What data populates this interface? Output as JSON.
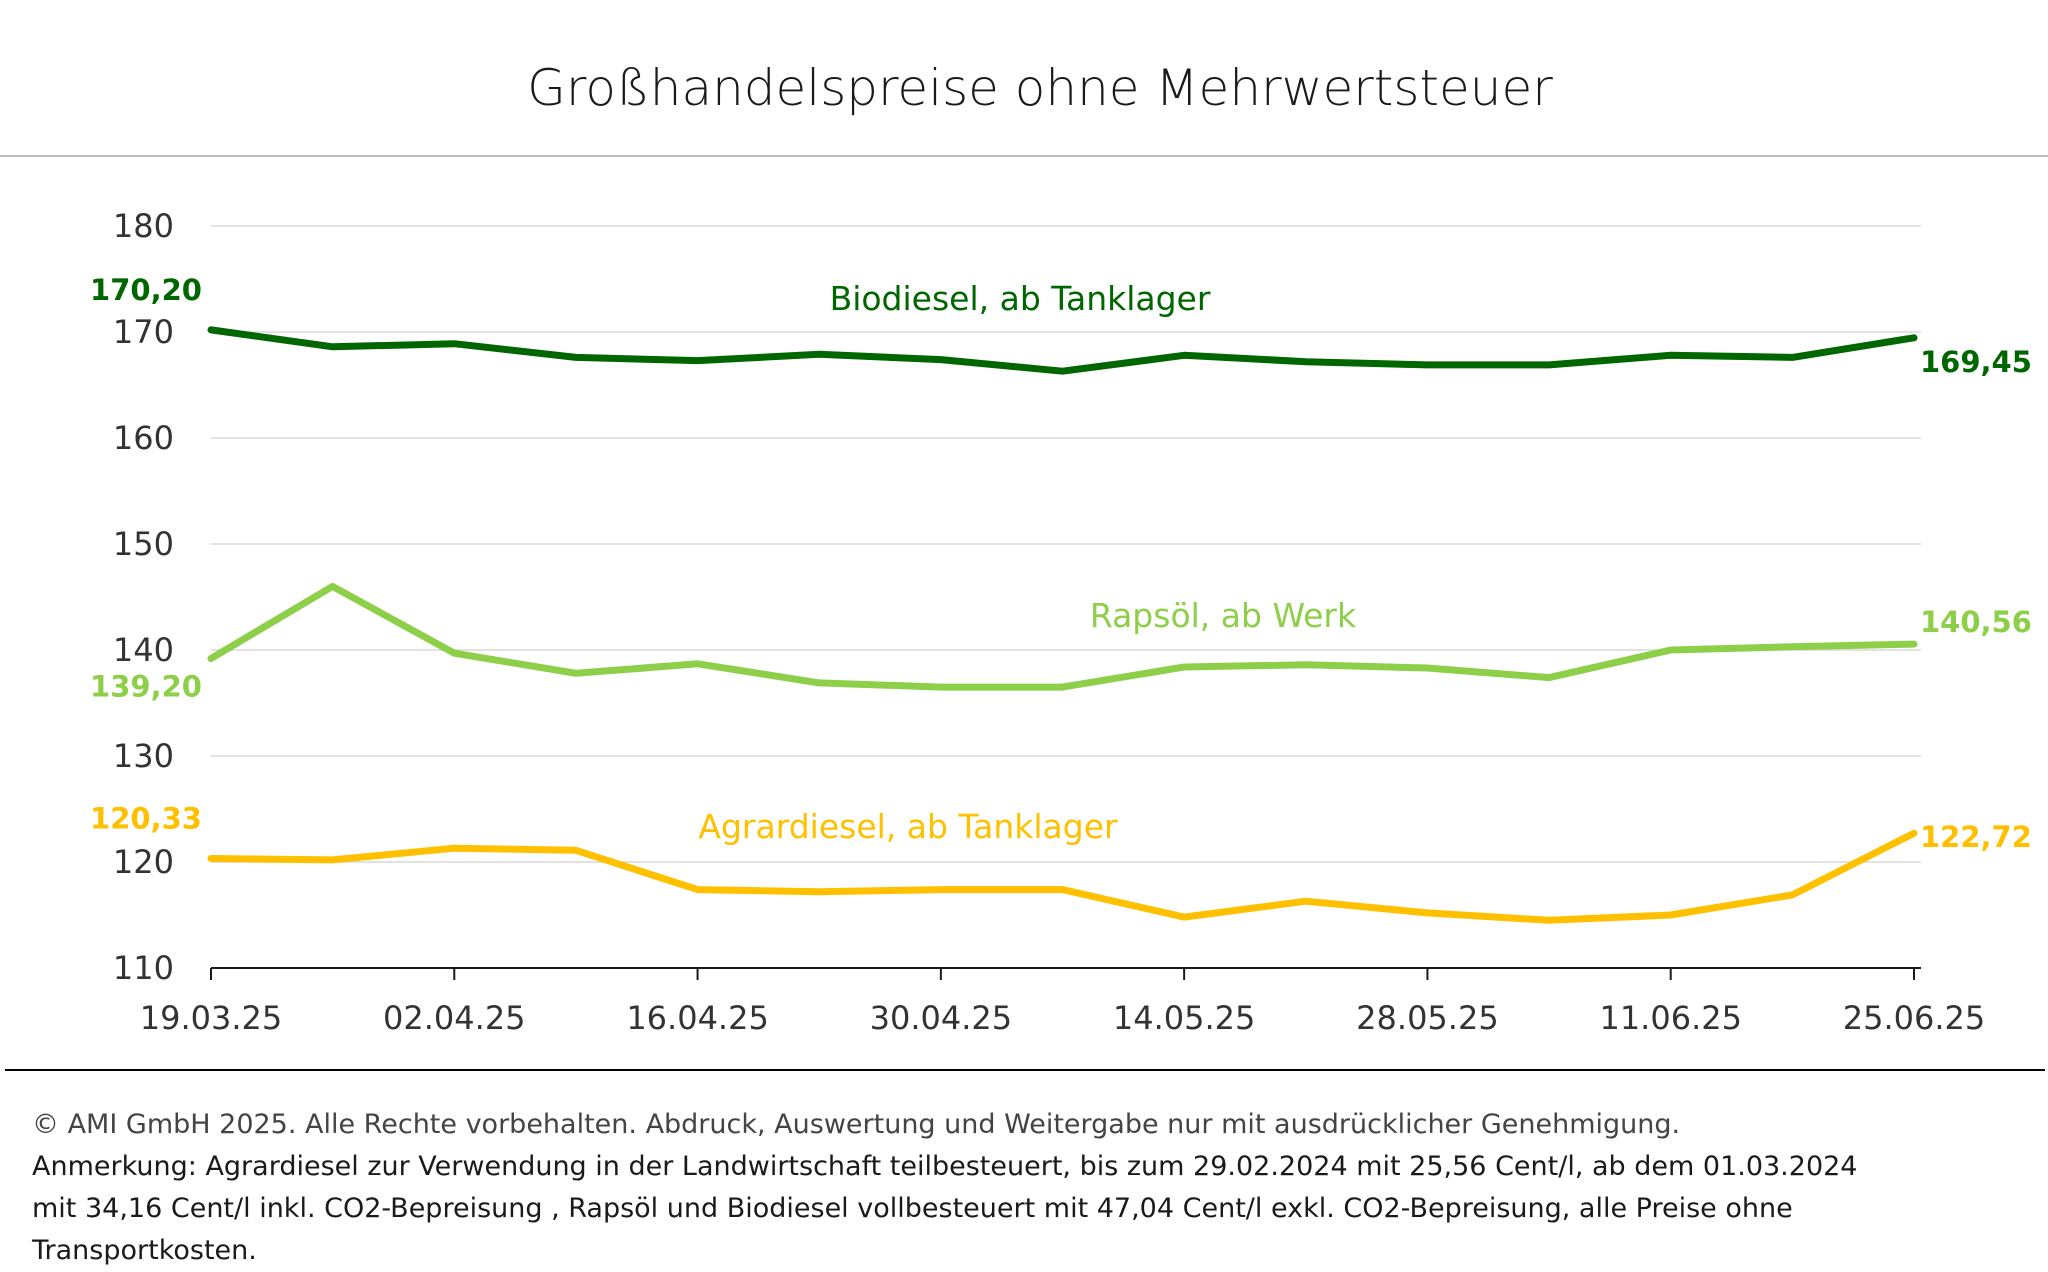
{
  "footer": {
    "copyright": "© AMI GmbH 2025.  Alle Rechte vorbehalten.  Abdruck, Auswertung und Weitergabe nur mit ausdrücklicher Genehmigung.",
    "note_line1": "Anmerkung: Agrardiesel zur Verwendung in der Landwirtschaft teilbesteuert, bis zum 29.02.2024 mit 25,56 Cent/l, ab dem 01.03.2024",
    "note_line2": "mit 34,16 Cent/l inkl. CO2-Bepreisung , Rapsöl und Biodiesel vollbesteuert mit 47,04 Cent/l exkl. CO2-Bepreisung, alle Preise ohne Transportkosten."
  },
  "chart_data": {
    "type": "line",
    "title": "Großhandelspreise ohne Mehrwertsteuer",
    "xlabel": "",
    "ylabel": "",
    "ylim": [
      110,
      180
    ],
    "yticks": [
      110,
      120,
      130,
      140,
      150,
      160,
      170,
      180
    ],
    "grid": true,
    "x": [
      "19.03.25",
      "26.03.25",
      "02.04.25",
      "09.04.25",
      "16.04.25",
      "23.04.25",
      "30.04.25",
      "07.05.25",
      "14.05.25",
      "21.05.25",
      "28.05.25",
      "04.06.25",
      "11.06.25",
      "18.06.25",
      "25.06.25"
    ],
    "xtick_labels": [
      "19.03.25",
      "02.04.25",
      "16.04.25",
      "30.04.25",
      "14.05.25",
      "28.05.25",
      "11.06.25",
      "25.06.25"
    ],
    "series": [
      {
        "name": "Biodiesel, ab Tanklager",
        "color": "#006600",
        "values": [
          170.2,
          168.6,
          168.9,
          167.6,
          167.3,
          167.9,
          167.4,
          166.3,
          167.8,
          167.2,
          166.9,
          166.9,
          167.8,
          167.6,
          169.45
        ],
        "first_label": "170,20",
        "last_label": "169,45"
      },
      {
        "name": "Rapsöl, ab Werk",
        "color": "#8ecf4a",
        "values": [
          139.2,
          146.0,
          139.7,
          137.8,
          138.7,
          136.9,
          136.5,
          136.5,
          138.4,
          138.6,
          138.3,
          137.4,
          140.0,
          140.3,
          140.56
        ],
        "first_label": "139,20",
        "last_label": "140,56"
      },
      {
        "name": "Agrardiesel, ab Tanklager",
        "color": "#ffc000",
        "values": [
          120.33,
          120.2,
          121.3,
          121.1,
          117.4,
          117.2,
          117.4,
          117.4,
          114.8,
          116.3,
          115.2,
          114.5,
          115.0,
          116.9,
          122.72
        ],
        "first_label": "120,33",
        "last_label": "122,72"
      }
    ]
  }
}
